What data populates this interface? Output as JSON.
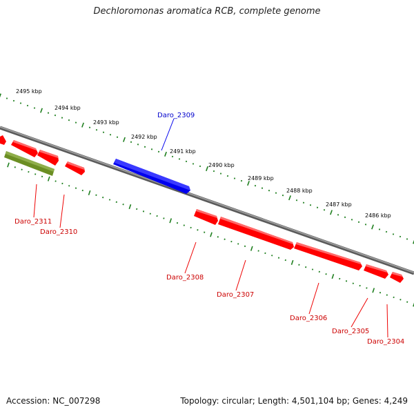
{
  "title": "Dechloromonas aromatica RCB, complete genome",
  "footer": {
    "accession": "Accession: NC_007298",
    "summary": "Topology: circular; Length: 4,501,104 bp; Genes: 4,249"
  },
  "colors": {
    "backbone": "#808080",
    "ticks": "#1f7f1f",
    "forward_gene": "#0000ee",
    "reverse_gene": "#ff0000",
    "special_gene": "#6b8e23",
    "forward_label": "#0000cc",
    "reverse_label": "#cc0000"
  },
  "scale_labels": [
    "2495 kbp",
    "2494 kbp",
    "2493 kbp",
    "2492 kbp",
    "2491 kbp",
    "2490 kbp",
    "2489 kbp",
    "2488 kbp",
    "2487 kbp",
    "2486 kbp"
  ],
  "gene_labels": [
    {
      "name": "Daro_2309",
      "strand": "forward"
    },
    {
      "name": "Daro_2311",
      "strand": "reverse"
    },
    {
      "name": "Daro_2310",
      "strand": "reverse"
    },
    {
      "name": "Daro_2308",
      "strand": "reverse"
    },
    {
      "name": "Daro_2307",
      "strand": "reverse"
    },
    {
      "name": "Daro_2306",
      "strand": "reverse"
    },
    {
      "name": "Daro_2305",
      "strand": "reverse"
    },
    {
      "name": "Daro_2304",
      "strand": "reverse"
    }
  ]
}
